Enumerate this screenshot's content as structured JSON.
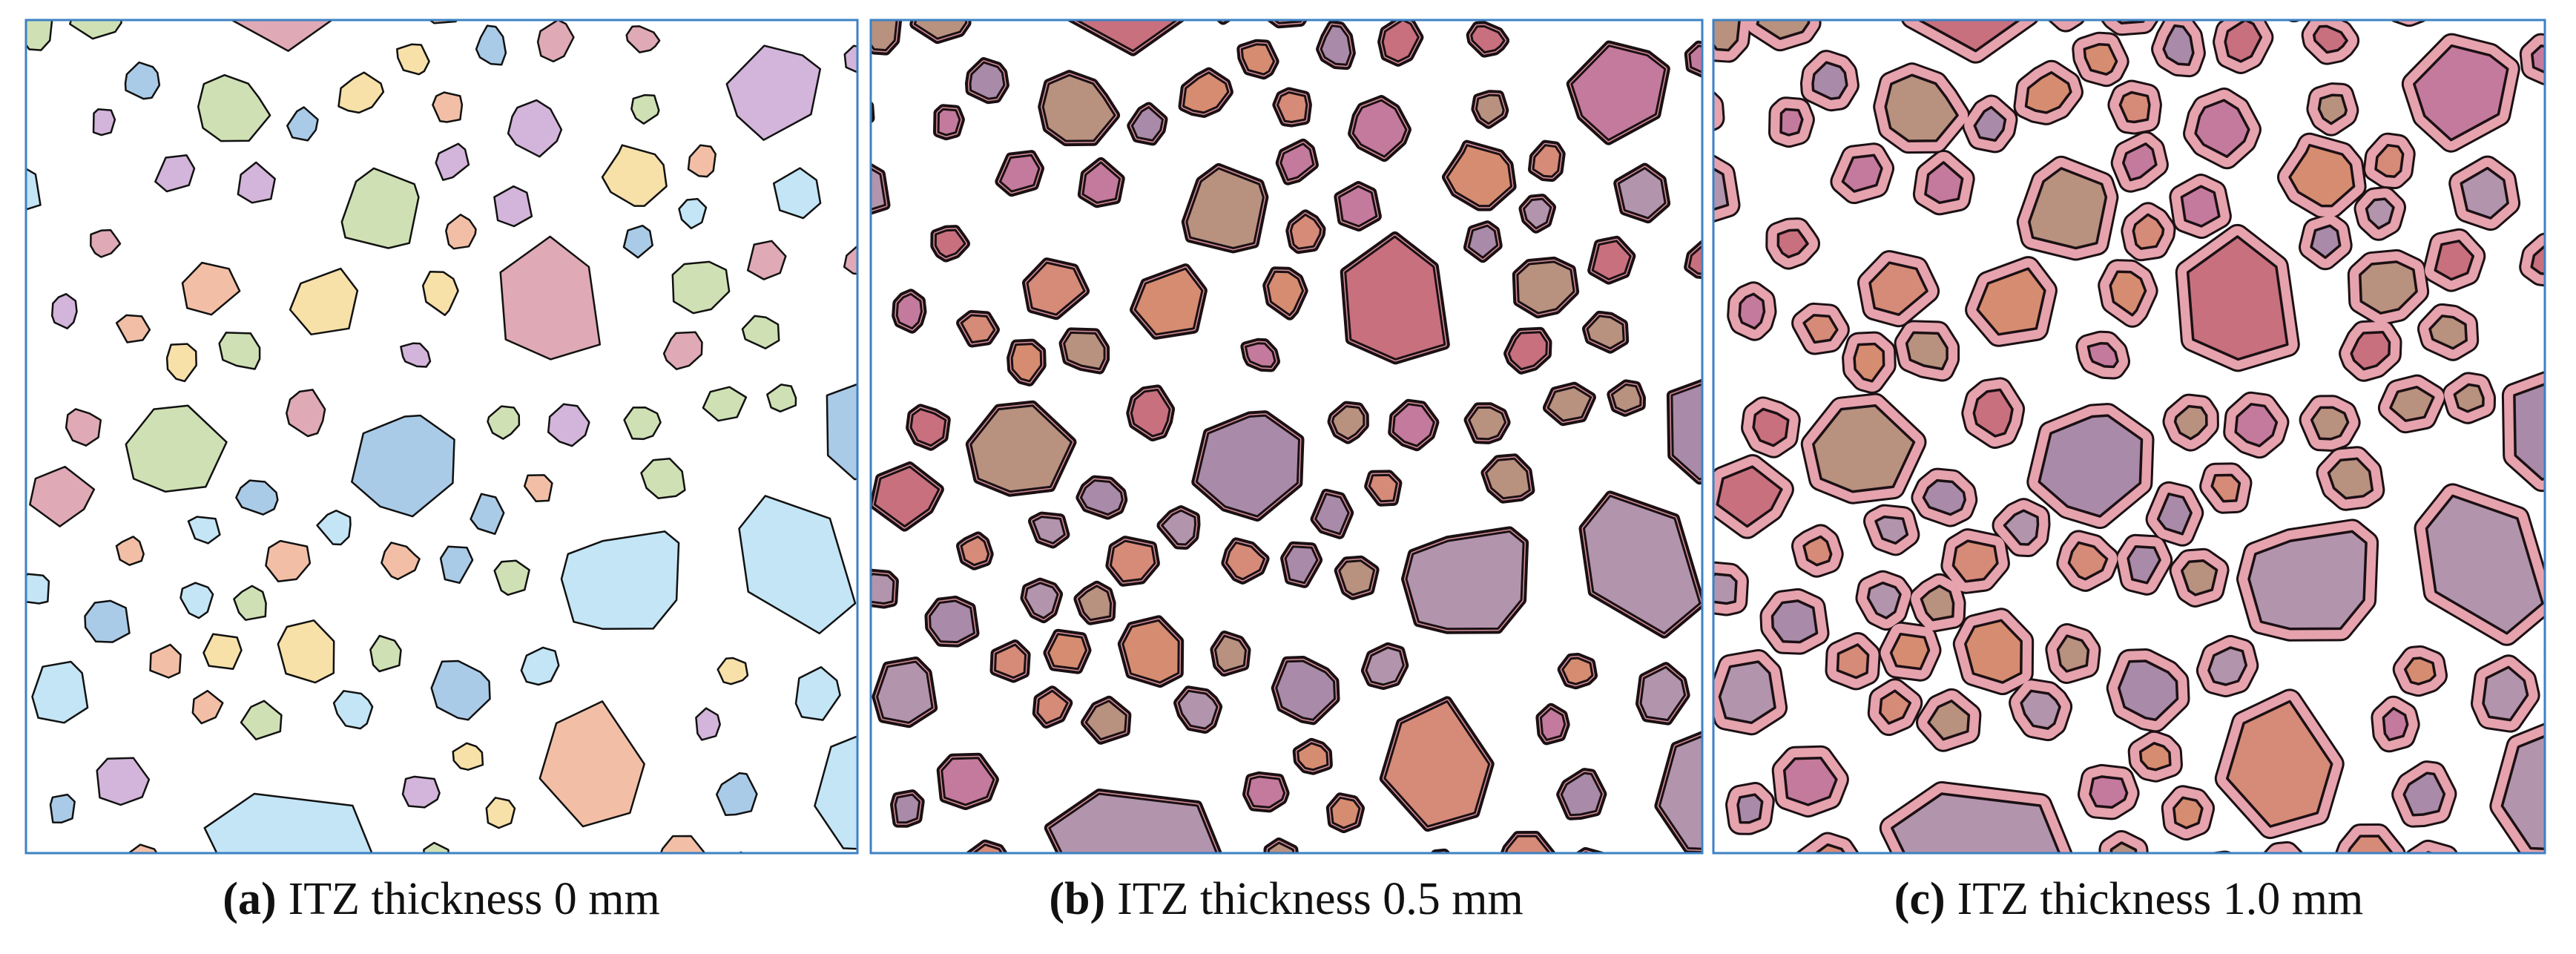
{
  "panels": [
    {
      "label": "(a)",
      "caption": "ITZ thickness 0 mm"
    },
    {
      "label": "(b)",
      "caption": "ITZ thickness 0.5 mm"
    },
    {
      "label": "(c)",
      "caption": "ITZ thickness 1.0 mm"
    }
  ]
}
